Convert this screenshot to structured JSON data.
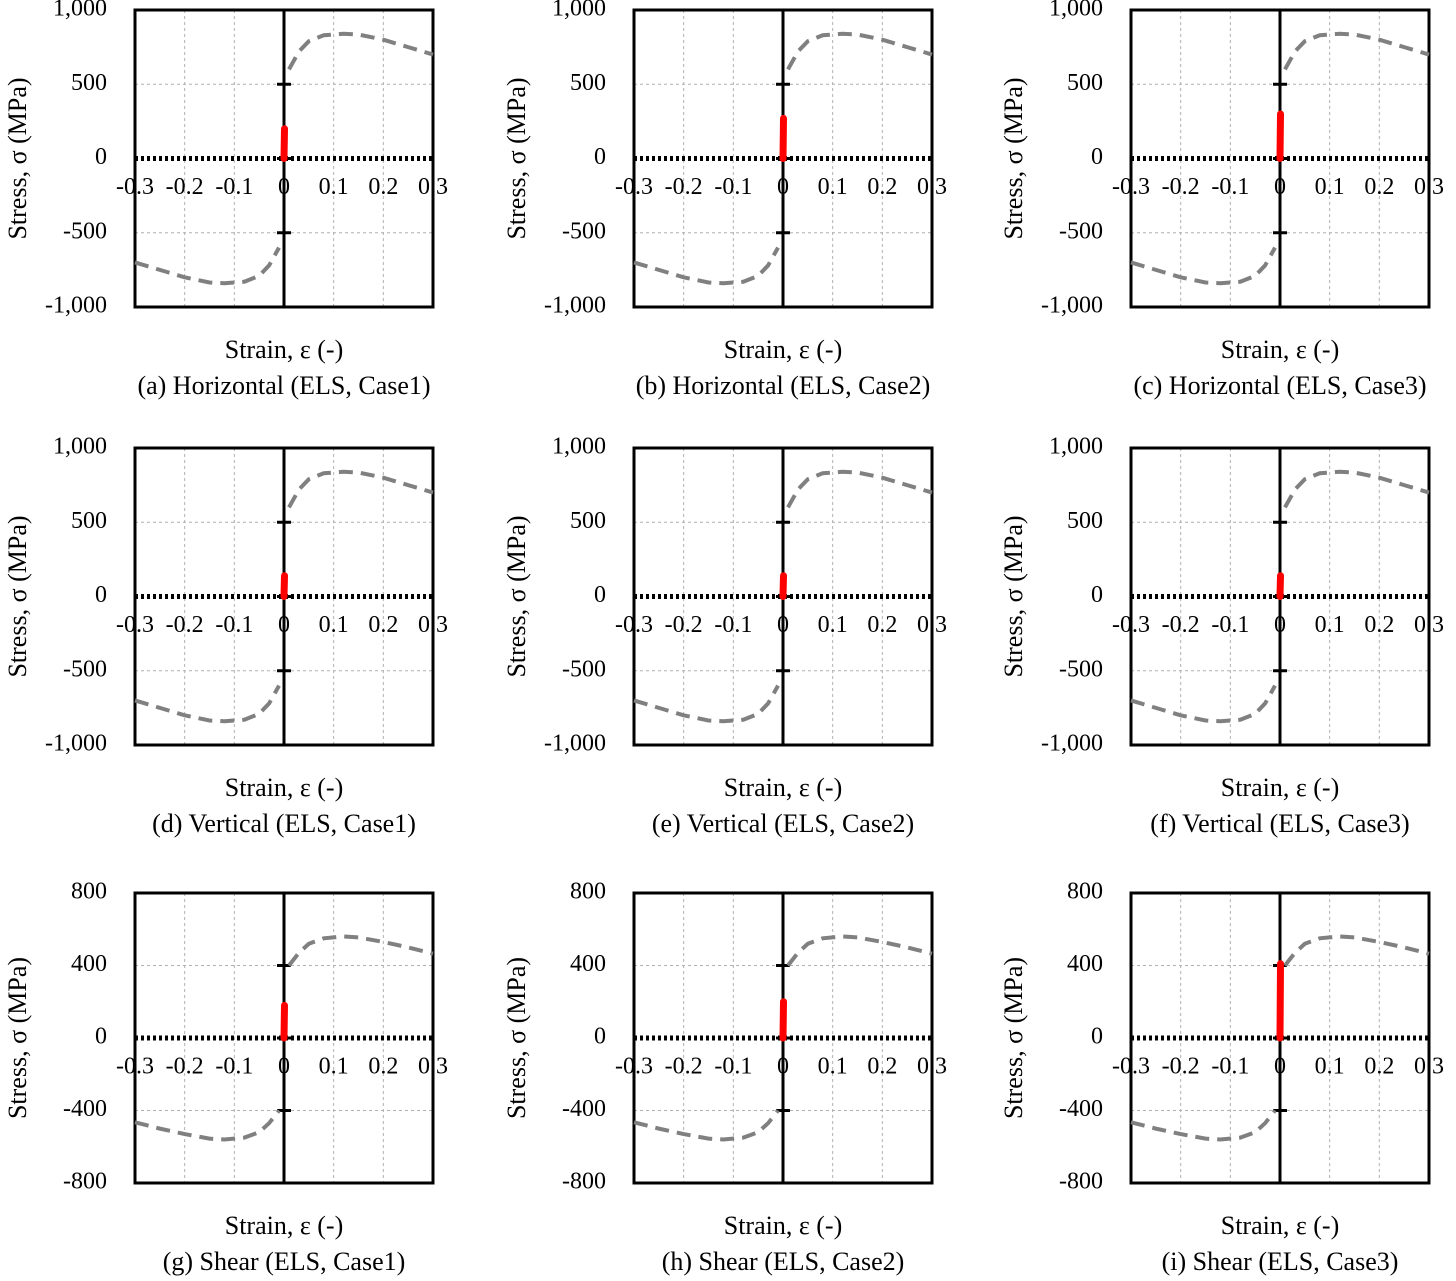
{
  "chart_data": [
    {
      "type": "line",
      "title": "(a) Horizontal (ELS, Case1)",
      "x_label": "Strain, ε (-)",
      "y_label": "Stress, σ (MPa)",
      "xlim": [
        -0.3,
        0.3
      ],
      "xticks": [
        -0.3,
        -0.2,
        -0.1,
        0,
        0.1,
        0.2,
        0.3
      ],
      "ylim": [
        -1000,
        1000
      ],
      "yticks": [
        {
          "value": -1000,
          "label": "-1,000"
        },
        -500,
        0,
        500,
        {
          "value": 1000,
          "label": "1,000"
        }
      ],
      "grid": true,
      "series": [
        {
          "color": "#808080",
          "style": "dashed",
          "x": [
            -0.3,
            -0.25,
            -0.2,
            -0.15,
            -0.12,
            -0.08,
            -0.05,
            -0.03,
            -0.01,
            0,
            0.01,
            0.03,
            0.05,
            0.08,
            0.12,
            0.15,
            0.2,
            0.25,
            0.3
          ],
          "values": [
            -700,
            -750,
            -800,
            -835,
            -840,
            -830,
            -790,
            -720,
            -600,
            null,
            600,
            720,
            790,
            830,
            840,
            835,
            800,
            750,
            700
          ]
        },
        {
          "color": "#ff0000",
          "style": "solid",
          "x": [
            0,
            0.001
          ],
          "values": [
            0,
            200
          ]
        }
      ]
    },
    {
      "type": "line",
      "title": "(b) Horizontal (ELS, Case2)",
      "x_label": "Strain, ε (-)",
      "y_label": "Stress, σ (MPa)",
      "xlim": [
        -0.3,
        0.3
      ],
      "xticks": [
        -0.3,
        -0.2,
        -0.1,
        0,
        0.1,
        0.2,
        0.3
      ],
      "ylim": [
        -1000,
        1000
      ],
      "yticks": [
        {
          "value": -1000,
          "label": "-1,000"
        },
        -500,
        0,
        500,
        {
          "value": 1000,
          "label": "1,000"
        }
      ],
      "grid": true,
      "series": [
        {
          "color": "#808080",
          "style": "dashed",
          "x": [
            -0.3,
            -0.25,
            -0.2,
            -0.15,
            -0.12,
            -0.08,
            -0.05,
            -0.03,
            -0.01,
            0,
            0.01,
            0.03,
            0.05,
            0.08,
            0.12,
            0.15,
            0.2,
            0.25,
            0.3
          ],
          "values": [
            -700,
            -750,
            -800,
            -835,
            -840,
            -830,
            -790,
            -720,
            -600,
            null,
            600,
            720,
            790,
            830,
            840,
            835,
            800,
            750,
            700
          ]
        },
        {
          "color": "#ff0000",
          "style": "solid",
          "x": [
            0,
            0.001
          ],
          "values": [
            0,
            270
          ]
        }
      ]
    },
    {
      "type": "line",
      "title": "(c) Horizontal (ELS, Case3)",
      "x_label": "Strain, ε (-)",
      "y_label": "Stress, σ (MPa)",
      "xlim": [
        -0.3,
        0.3
      ],
      "xticks": [
        -0.3,
        -0.2,
        -0.1,
        0,
        0.1,
        0.2,
        0.3
      ],
      "ylim": [
        -1000,
        1000
      ],
      "yticks": [
        {
          "value": -1000,
          "label": "-1,000"
        },
        -500,
        0,
        500,
        {
          "value": 1000,
          "label": "1,000"
        }
      ],
      "grid": true,
      "series": [
        {
          "color": "#808080",
          "style": "dashed",
          "x": [
            -0.3,
            -0.25,
            -0.2,
            -0.15,
            -0.12,
            -0.08,
            -0.05,
            -0.03,
            -0.01,
            0,
            0.01,
            0.03,
            0.05,
            0.08,
            0.12,
            0.15,
            0.2,
            0.25,
            0.3
          ],
          "values": [
            -700,
            -750,
            -800,
            -835,
            -840,
            -830,
            -790,
            -720,
            -600,
            null,
            600,
            720,
            790,
            830,
            840,
            835,
            800,
            750,
            700
          ]
        },
        {
          "color": "#ff0000",
          "style": "solid",
          "x": [
            0,
            0.001
          ],
          "values": [
            0,
            300
          ]
        }
      ]
    },
    {
      "type": "line",
      "title": "(d) Vertical (ELS, Case1)",
      "x_label": "Strain, ε (-)",
      "y_label": "Stress, σ (MPa)",
      "xlim": [
        -0.3,
        0.3
      ],
      "xticks": [
        -0.3,
        -0.2,
        -0.1,
        0,
        0.1,
        0.2,
        0.3
      ],
      "ylim": [
        -1000,
        1000
      ],
      "yticks": [
        {
          "value": -1000,
          "label": "-1,000"
        },
        -500,
        0,
        500,
        {
          "value": 1000,
          "label": "1,000"
        }
      ],
      "grid": true,
      "series": [
        {
          "color": "#808080",
          "style": "dashed",
          "x": [
            -0.3,
            -0.25,
            -0.2,
            -0.15,
            -0.12,
            -0.08,
            -0.05,
            -0.03,
            -0.01,
            0,
            0.01,
            0.03,
            0.05,
            0.08,
            0.12,
            0.15,
            0.2,
            0.25,
            0.3
          ],
          "values": [
            -700,
            -750,
            -800,
            -835,
            -840,
            -830,
            -790,
            -720,
            -600,
            null,
            600,
            720,
            790,
            830,
            840,
            835,
            800,
            750,
            700
          ]
        },
        {
          "color": "#ff0000",
          "style": "solid",
          "x": [
            0,
            0.001
          ],
          "values": [
            0,
            140
          ]
        }
      ]
    },
    {
      "type": "line",
      "title": "(e) Vertical (ELS, Case2)",
      "x_label": "Strain, ε (-)",
      "y_label": "Stress, σ (MPa)",
      "xlim": [
        -0.3,
        0.3
      ],
      "xticks": [
        -0.3,
        -0.2,
        -0.1,
        0,
        0.1,
        0.2,
        0.3
      ],
      "ylim": [
        -1000,
        1000
      ],
      "yticks": [
        {
          "value": -1000,
          "label": "-1,000"
        },
        -500,
        0,
        500,
        {
          "value": 1000,
          "label": "1,000"
        }
      ],
      "grid": true,
      "series": [
        {
          "color": "#808080",
          "style": "dashed",
          "x": [
            -0.3,
            -0.25,
            -0.2,
            -0.15,
            -0.12,
            -0.08,
            -0.05,
            -0.03,
            -0.01,
            0,
            0.01,
            0.03,
            0.05,
            0.08,
            0.12,
            0.15,
            0.2,
            0.25,
            0.3
          ],
          "values": [
            -700,
            -750,
            -800,
            -835,
            -840,
            -830,
            -790,
            -720,
            -600,
            null,
            600,
            720,
            790,
            830,
            840,
            835,
            800,
            750,
            700
          ]
        },
        {
          "color": "#ff0000",
          "style": "solid",
          "x": [
            0,
            0.001
          ],
          "values": [
            0,
            140
          ]
        }
      ]
    },
    {
      "type": "line",
      "title": "(f) Vertical (ELS, Case3)",
      "x_label": "Strain, ε (-)",
      "y_label": "Stress, σ (MPa)",
      "xlim": [
        -0.3,
        0.3
      ],
      "xticks": [
        -0.3,
        -0.2,
        -0.1,
        0,
        0.1,
        0.2,
        0.3
      ],
      "ylim": [
        -1000,
        1000
      ],
      "yticks": [
        {
          "value": -1000,
          "label": "-1,000"
        },
        -500,
        0,
        500,
        {
          "value": 1000,
          "label": "1,000"
        }
      ],
      "grid": true,
      "series": [
        {
          "color": "#808080",
          "style": "dashed",
          "x": [
            -0.3,
            -0.25,
            -0.2,
            -0.15,
            -0.12,
            -0.08,
            -0.05,
            -0.03,
            -0.01,
            0,
            0.01,
            0.03,
            0.05,
            0.08,
            0.12,
            0.15,
            0.2,
            0.25,
            0.3
          ],
          "values": [
            -700,
            -750,
            -800,
            -835,
            -840,
            -830,
            -790,
            -720,
            -600,
            null,
            600,
            720,
            790,
            830,
            840,
            835,
            800,
            750,
            700
          ]
        },
        {
          "color": "#ff0000",
          "style": "solid",
          "x": [
            0,
            0.001
          ],
          "values": [
            0,
            140
          ]
        }
      ]
    },
    {
      "type": "line",
      "title": "(g) Shear (ELS, Case1)",
      "x_label": "Strain, ε (-)",
      "y_label": "Stress, σ (MPa)",
      "xlim": [
        -0.3,
        0.3
      ],
      "xticks": [
        -0.3,
        -0.2,
        -0.1,
        0,
        0.1,
        0.2,
        0.3
      ],
      "ylim": [
        -800,
        800
      ],
      "yticks": [
        -800,
        -400,
        0,
        400,
        800
      ],
      "grid": true,
      "series": [
        {
          "color": "#808080",
          "style": "dashed",
          "x": [
            -0.3,
            -0.25,
            -0.2,
            -0.15,
            -0.12,
            -0.08,
            -0.05,
            -0.03,
            -0.01,
            0,
            0.01,
            0.03,
            0.05,
            0.08,
            0.12,
            0.15,
            0.2,
            0.25,
            0.3
          ],
          "values": [
            -465,
            -500,
            -530,
            -555,
            -560,
            -550,
            -520,
            -470,
            -400,
            null,
            400,
            470,
            520,
            550,
            560,
            555,
            530,
            500,
            465
          ]
        },
        {
          "color": "#ff0000",
          "style": "solid",
          "x": [
            0,
            0.001
          ],
          "values": [
            0,
            180
          ]
        }
      ]
    },
    {
      "type": "line",
      "title": "(h) Shear (ELS, Case2)",
      "x_label": "Strain, ε (-)",
      "y_label": "Stress, σ (MPa)",
      "xlim": [
        -0.3,
        0.3
      ],
      "xticks": [
        -0.3,
        -0.2,
        -0.1,
        0,
        0.1,
        0.2,
        0.3
      ],
      "ylim": [
        -800,
        800
      ],
      "yticks": [
        -800,
        -400,
        0,
        400,
        800
      ],
      "grid": true,
      "series": [
        {
          "color": "#808080",
          "style": "dashed",
          "x": [
            -0.3,
            -0.25,
            -0.2,
            -0.15,
            -0.12,
            -0.08,
            -0.05,
            -0.03,
            -0.01,
            0,
            0.01,
            0.03,
            0.05,
            0.08,
            0.12,
            0.15,
            0.2,
            0.25,
            0.3
          ],
          "values": [
            -465,
            -500,
            -530,
            -555,
            -560,
            -550,
            -520,
            -470,
            -400,
            null,
            400,
            470,
            520,
            550,
            560,
            555,
            530,
            500,
            465
          ]
        },
        {
          "color": "#ff0000",
          "style": "solid",
          "x": [
            0,
            0.001
          ],
          "values": [
            0,
            200
          ]
        }
      ]
    },
    {
      "type": "line",
      "title": "(i) Shear (ELS, Case3)",
      "x_label": "Strain, ε (-)",
      "y_label": "Stress, σ (MPa)",
      "xlim": [
        -0.3,
        0.3
      ],
      "xticks": [
        -0.3,
        -0.2,
        -0.1,
        0,
        0.1,
        0.2,
        0.3
      ],
      "ylim": [
        -800,
        800
      ],
      "yticks": [
        -800,
        -400,
        0,
        400,
        800
      ],
      "grid": true,
      "series": [
        {
          "color": "#808080",
          "style": "dashed",
          "x": [
            -0.3,
            -0.25,
            -0.2,
            -0.15,
            -0.12,
            -0.08,
            -0.05,
            -0.03,
            -0.01,
            0,
            0.01,
            0.03,
            0.05,
            0.08,
            0.12,
            0.15,
            0.2,
            0.25,
            0.3
          ],
          "values": [
            -465,
            -500,
            -530,
            -555,
            -560,
            -550,
            -520,
            -470,
            -400,
            null,
            400,
            470,
            520,
            550,
            560,
            555,
            530,
            500,
            465
          ]
        },
        {
          "color": "#ff0000",
          "style": "solid",
          "x": [
            0,
            0.001
          ],
          "values": [
            0,
            410
          ]
        }
      ]
    }
  ]
}
